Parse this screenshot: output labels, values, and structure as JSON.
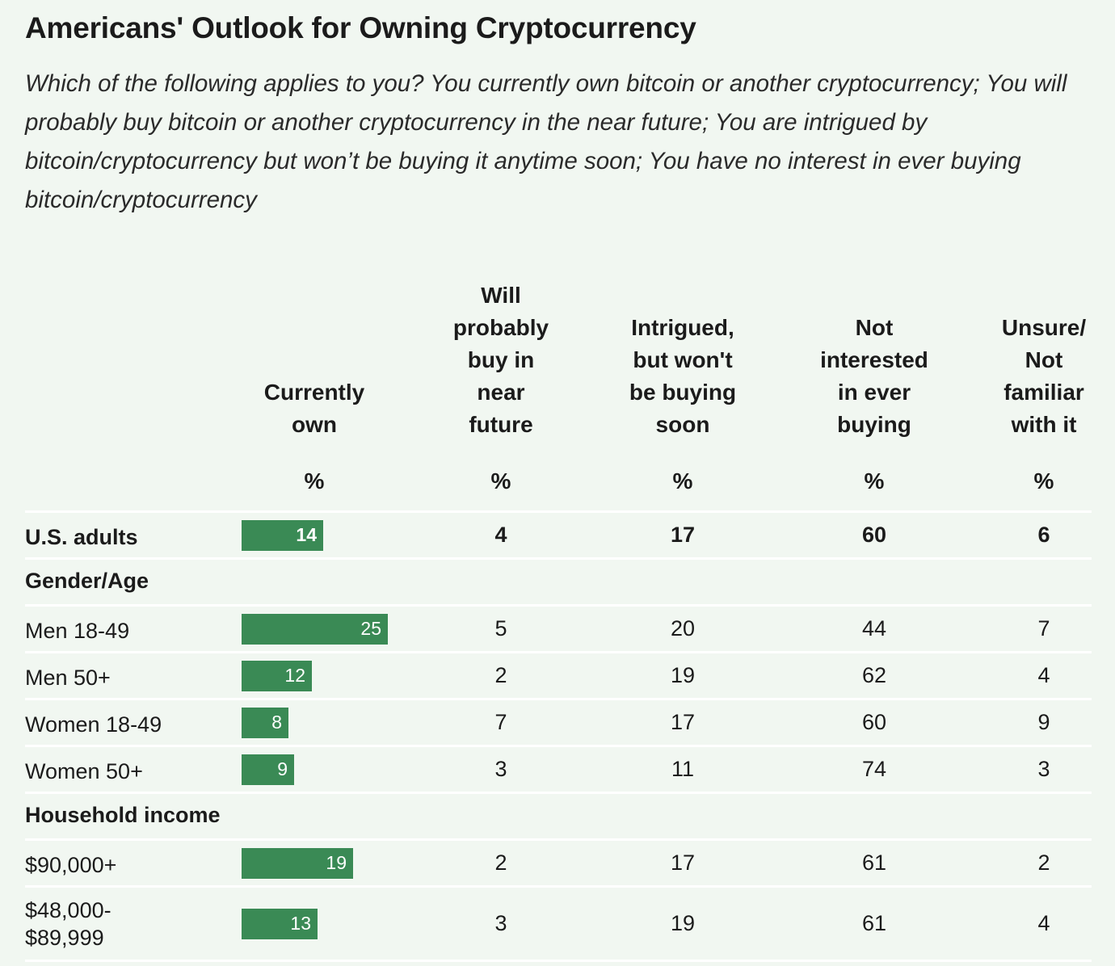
{
  "title": "Americans' Outlook for Owning Cryptocurrency",
  "subtitle": "Which of the following applies to you? You currently own bitcoin or another cryptocurrency; You will probably buy bitcoin or another cryptocurrency in the near future; You are intrigued by bitcoin/cryptocurrency but won’t be buying it anytime soon; You have no interest in ever buying bitcoin/cryptocurrency",
  "columns": [
    {
      "lines": [
        "Currently",
        "own"
      ],
      "unit": "%"
    },
    {
      "lines": [
        "Will",
        "probably",
        "buy in",
        "near",
        "future"
      ],
      "unit": "%"
    },
    {
      "lines": [
        "Intrigued,",
        "but won't",
        "be buying",
        "soon"
      ],
      "unit": "%"
    },
    {
      "lines": [
        "Not",
        "interested",
        "in ever",
        "buying"
      ],
      "unit": "%"
    },
    {
      "lines": [
        "Unsure/",
        "Not",
        "familiar",
        "with it"
      ],
      "unit": "%"
    }
  ],
  "colors": {
    "bar": "#3a8a55",
    "background": "#f1f7f1",
    "divider": "#ffffff"
  },
  "chart_data": {
    "type": "table",
    "title": "Americans' Outlook for Owning Cryptocurrency",
    "bar_column": "Currently own",
    "rows": [
      {
        "kind": "data",
        "label": "U.S. adults",
        "bold": true,
        "values": [
          14,
          4,
          17,
          60,
          6
        ]
      },
      {
        "kind": "group",
        "label": "Gender/Age"
      },
      {
        "kind": "data",
        "label": "Men 18-49",
        "values": [
          25,
          5,
          20,
          44,
          7
        ]
      },
      {
        "kind": "data",
        "label": "Men 50+",
        "values": [
          12,
          2,
          19,
          62,
          4
        ]
      },
      {
        "kind": "data",
        "label": "Women 18-49",
        "values": [
          8,
          7,
          17,
          60,
          9
        ]
      },
      {
        "kind": "data",
        "label": "Women 50+",
        "values": [
          9,
          3,
          11,
          74,
          3
        ]
      },
      {
        "kind": "group",
        "label": "Household income"
      },
      {
        "kind": "data",
        "label": "$90,000+",
        "values": [
          19,
          2,
          17,
          61,
          2
        ]
      },
      {
        "kind": "data",
        "label": "$48,000-\n$89,999",
        "values": [
          13,
          3,
          19,
          61,
          4
        ]
      }
    ]
  }
}
